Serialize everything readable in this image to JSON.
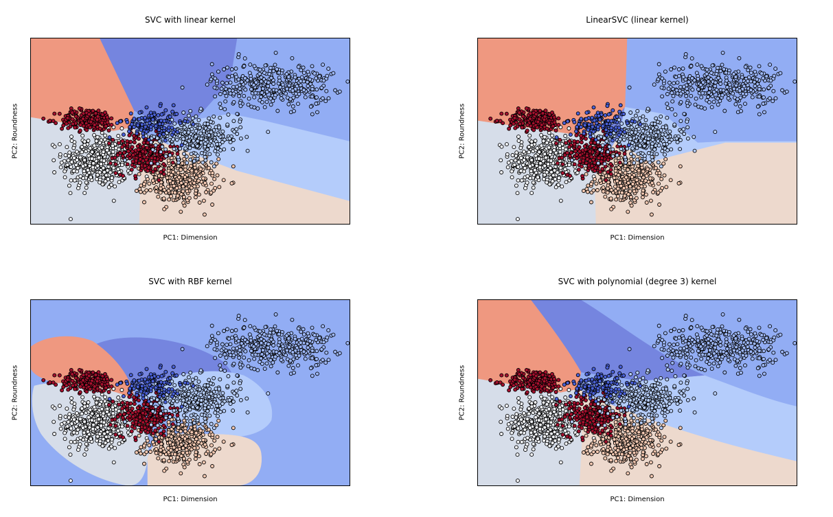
{
  "colors": {
    "class0": "#d6dde9",
    "class1": "#edd9cd",
    "class2": "#ef9880",
    "class3": "#b4ccfb",
    "class4": "#92adf4",
    "class5": "#7585df",
    "pt0": "#f1f3f7",
    "pt1": "#f5c9b2",
    "pt2": "#a5102e",
    "pt3": "#b6cdf9",
    "pt4": "#9db7f6",
    "pt5": "#4a61d8"
  },
  "chart_data": [
    {
      "type": "scatter",
      "title": "SVC with linear kernel",
      "xlabel": "PC1: Dimension",
      "ylabel": "PC2: Roundness",
      "xticks": false,
      "yticks": false,
      "decision_regions": true,
      "clusters": [
        {
          "class": 0,
          "cx": 0.21,
          "cy": 0.34,
          "sx": 0.055,
          "sy": 0.075,
          "n": 420
        },
        {
          "class": 1,
          "cx": 0.47,
          "cy": 0.23,
          "sx": 0.055,
          "sy": 0.06,
          "n": 300
        },
        {
          "class": 2,
          "cx": 0.36,
          "cy": 0.38,
          "sx": 0.045,
          "sy": 0.055,
          "n": 230
        },
        {
          "class": 2,
          "cx": 0.18,
          "cy": 0.56,
          "sx": 0.045,
          "sy": 0.03,
          "n": 200
        },
        {
          "class": 3,
          "cx": 0.52,
          "cy": 0.47,
          "sx": 0.07,
          "sy": 0.06,
          "n": 300
        },
        {
          "class": 5,
          "cx": 0.38,
          "cy": 0.54,
          "sx": 0.045,
          "sy": 0.04,
          "n": 130
        },
        {
          "class": 4,
          "cx": 0.76,
          "cy": 0.75,
          "sx": 0.095,
          "sy": 0.06,
          "n": 380
        }
      ]
    },
    {
      "type": "scatter",
      "title": "LinearSVC (linear kernel)",
      "xlabel": "PC1: Dimension",
      "ylabel": "PC2: Roundness",
      "xticks": false,
      "yticks": false,
      "decision_regions": true,
      "clusters": [
        {
          "class": 0,
          "cx": 0.21,
          "cy": 0.34,
          "sx": 0.055,
          "sy": 0.075,
          "n": 420
        },
        {
          "class": 1,
          "cx": 0.47,
          "cy": 0.23,
          "sx": 0.055,
          "sy": 0.06,
          "n": 300
        },
        {
          "class": 2,
          "cx": 0.36,
          "cy": 0.38,
          "sx": 0.045,
          "sy": 0.055,
          "n": 230
        },
        {
          "class": 2,
          "cx": 0.18,
          "cy": 0.56,
          "sx": 0.045,
          "sy": 0.03,
          "n": 200
        },
        {
          "class": 3,
          "cx": 0.52,
          "cy": 0.47,
          "sx": 0.07,
          "sy": 0.06,
          "n": 300
        },
        {
          "class": 5,
          "cx": 0.38,
          "cy": 0.54,
          "sx": 0.045,
          "sy": 0.04,
          "n": 130
        },
        {
          "class": 4,
          "cx": 0.76,
          "cy": 0.75,
          "sx": 0.095,
          "sy": 0.06,
          "n": 380
        }
      ]
    },
    {
      "type": "scatter",
      "title": "SVC with RBF kernel",
      "xlabel": "PC1: Dimension",
      "ylabel": "PC2: Roundness",
      "xticks": false,
      "yticks": false,
      "decision_regions": true,
      "clusters": [
        {
          "class": 0,
          "cx": 0.21,
          "cy": 0.34,
          "sx": 0.055,
          "sy": 0.075,
          "n": 420
        },
        {
          "class": 1,
          "cx": 0.47,
          "cy": 0.23,
          "sx": 0.055,
          "sy": 0.06,
          "n": 300
        },
        {
          "class": 2,
          "cx": 0.36,
          "cy": 0.38,
          "sx": 0.045,
          "sy": 0.055,
          "n": 230
        },
        {
          "class": 2,
          "cx": 0.18,
          "cy": 0.56,
          "sx": 0.045,
          "sy": 0.03,
          "n": 200
        },
        {
          "class": 3,
          "cx": 0.52,
          "cy": 0.47,
          "sx": 0.07,
          "sy": 0.06,
          "n": 300
        },
        {
          "class": 5,
          "cx": 0.38,
          "cy": 0.54,
          "sx": 0.045,
          "sy": 0.04,
          "n": 130
        },
        {
          "class": 4,
          "cx": 0.76,
          "cy": 0.75,
          "sx": 0.095,
          "sy": 0.06,
          "n": 380
        }
      ]
    },
    {
      "type": "scatter",
      "title": "SVC with polynomial (degree 3) kernel",
      "xlabel": "PC1: Dimension",
      "ylabel": "PC2: Roundness",
      "xticks": false,
      "yticks": false,
      "decision_regions": true,
      "clusters": [
        {
          "class": 0,
          "cx": 0.21,
          "cy": 0.34,
          "sx": 0.055,
          "sy": 0.075,
          "n": 420
        },
        {
          "class": 1,
          "cx": 0.47,
          "cy": 0.23,
          "sx": 0.055,
          "sy": 0.06,
          "n": 300
        },
        {
          "class": 2,
          "cx": 0.36,
          "cy": 0.38,
          "sx": 0.045,
          "sy": 0.055,
          "n": 230
        },
        {
          "class": 2,
          "cx": 0.18,
          "cy": 0.56,
          "sx": 0.045,
          "sy": 0.03,
          "n": 200
        },
        {
          "class": 3,
          "cx": 0.52,
          "cy": 0.47,
          "sx": 0.07,
          "sy": 0.06,
          "n": 300
        },
        {
          "class": 5,
          "cx": 0.38,
          "cy": 0.54,
          "sx": 0.045,
          "sy": 0.04,
          "n": 130
        },
        {
          "class": 4,
          "cx": 0.76,
          "cy": 0.75,
          "sx": 0.095,
          "sy": 0.06,
          "n": 380
        }
      ]
    }
  ]
}
